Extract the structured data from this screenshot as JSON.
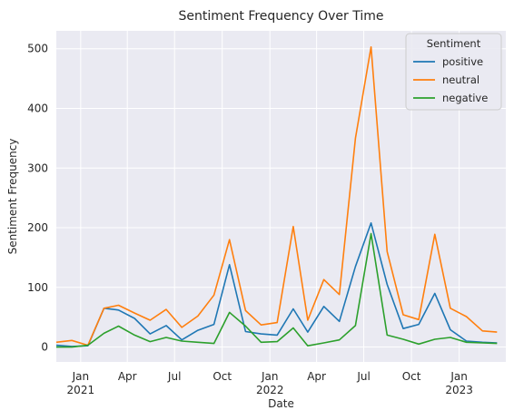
{
  "chart_data": {
    "type": "line",
    "title": "Sentiment Frequency Over Time",
    "xlabel": "Date",
    "ylabel": "Sentiment Frequency",
    "ylim": [
      -25,
      530
    ],
    "xlim": [
      "2020-11-15",
      "2023-04-01"
    ],
    "yticks": [
      0,
      100,
      200,
      300,
      400,
      500
    ],
    "xticks": [
      {
        "date": "2021-01-01",
        "label": "Jan",
        "year": "2021"
      },
      {
        "date": "2021-04-01",
        "label": "Apr",
        "year": ""
      },
      {
        "date": "2021-07-01",
        "label": "Jul",
        "year": ""
      },
      {
        "date": "2021-10-01",
        "label": "Oct",
        "year": ""
      },
      {
        "date": "2022-01-01",
        "label": "Jan",
        "year": "2022"
      },
      {
        "date": "2022-04-01",
        "label": "Apr",
        "year": ""
      },
      {
        "date": "2022-07-01",
        "label": "Jul",
        "year": ""
      },
      {
        "date": "2022-10-01",
        "label": "Oct",
        "year": ""
      },
      {
        "date": "2023-01-01",
        "label": "Jan",
        "year": "2023"
      }
    ],
    "grid": true,
    "background": "#eaeaf2",
    "legend": {
      "title": "Sentiment",
      "position": "top-right"
    },
    "x": [
      "2020-11-15",
      "2020-12-15",
      "2021-01-15",
      "2021-02-15",
      "2021-03-15",
      "2021-04-15",
      "2021-05-15",
      "2021-06-15",
      "2021-07-15",
      "2021-08-15",
      "2021-09-15",
      "2021-10-15",
      "2021-11-15",
      "2021-12-15",
      "2022-01-15",
      "2022-02-15",
      "2022-03-15",
      "2022-04-15",
      "2022-05-15",
      "2022-06-15",
      "2022-07-15",
      "2022-08-15",
      "2022-09-15",
      "2022-10-15",
      "2022-11-15",
      "2022-12-15",
      "2023-01-15",
      "2023-02-15",
      "2023-03-15"
    ],
    "series": [
      {
        "name": "positive",
        "color": "#1f77b4",
        "values": [
          3,
          1,
          2,
          65,
          62,
          48,
          22,
          36,
          12,
          28,
          38,
          138,
          26,
          22,
          20,
          64,
          25,
          68,
          43,
          135,
          208,
          105,
          31,
          38,
          90,
          29,
          10,
          8,
          7
        ]
      },
      {
        "name": "neutral",
        "color": "#ff7f0e",
        "values": [
          8,
          11,
          3,
          65,
          70,
          57,
          45,
          63,
          33,
          52,
          87,
          180,
          61,
          37,
          41,
          202,
          45,
          113,
          88,
          350,
          503,
          160,
          54,
          46,
          189,
          65,
          51,
          27,
          25
        ]
      },
      {
        "name": "negative",
        "color": "#2ca02c",
        "values": [
          0,
          0,
          3,
          23,
          35,
          20,
          9,
          16,
          10,
          8,
          6,
          58,
          35,
          8,
          9,
          32,
          2,
          7,
          12,
          36,
          190,
          20,
          13,
          5,
          13,
          16,
          8,
          7,
          6
        ]
      }
    ]
  }
}
